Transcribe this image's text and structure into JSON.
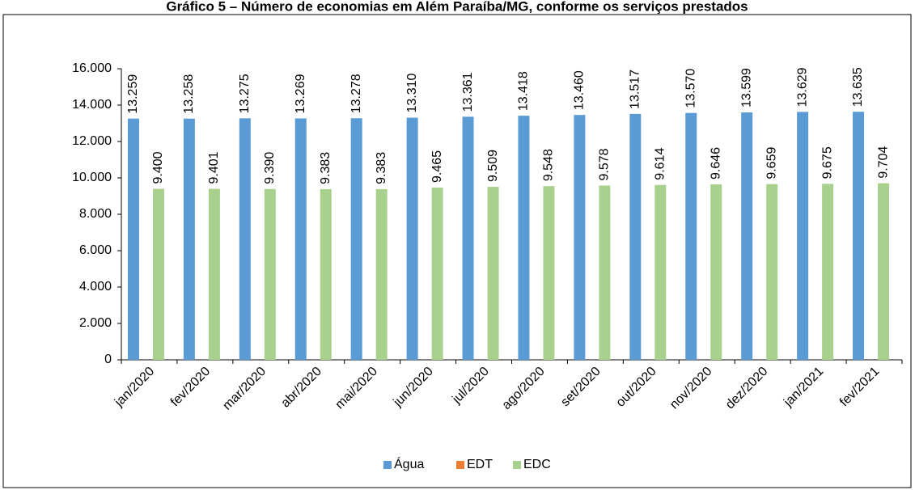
{
  "chart_data": {
    "type": "bar",
    "title": "Gráfico 5 – Número de economias em Além Paraíba/MG, conforme os serviços prestados",
    "categories": [
      "jan/2020",
      "fev/2020",
      "mar/2020",
      "abr/2020",
      "mai/2020",
      "jun/2020",
      "jul/2020",
      "ago/2020",
      "set/2020",
      "out/2020",
      "nov/2020",
      "dez/2020",
      "jan/2021",
      "fev/2021"
    ],
    "series": [
      {
        "name": "Água",
        "color": "#5b9bd5",
        "values": [
          13259,
          13258,
          13275,
          13269,
          13278,
          13310,
          13361,
          13418,
          13460,
          13517,
          13570,
          13599,
          13629,
          13635
        ],
        "value_labels": [
          "13.259",
          "13.258",
          "13.275",
          "13.269",
          "13.278",
          "13.310",
          "13.361",
          "13.418",
          "13.460",
          "13.517",
          "13.570",
          "13.599",
          "13.629",
          "13.635"
        ]
      },
      {
        "name": "EDT",
        "color": "#ed7d31",
        "values": [
          null,
          null,
          null,
          null,
          null,
          null,
          null,
          null,
          null,
          null,
          null,
          null,
          null,
          null
        ]
      },
      {
        "name": "EDC",
        "color": "#a9d18e",
        "values": [
          9400,
          9401,
          9390,
          9383,
          9383,
          9465,
          9509,
          9548,
          9578,
          9614,
          9646,
          9659,
          9675,
          9704
        ],
        "value_labels": [
          "9.400",
          "9.401",
          "9.390",
          "9.383",
          "9.383",
          "9.465",
          "9.509",
          "9.548",
          "9.578",
          "9.614",
          "9.646",
          "9.659",
          "9.675",
          "9.704"
        ]
      }
    ],
    "ylim": [
      0,
      16000
    ],
    "yticks": [
      0,
      {
        "value": 2000,
        "label": "2.000"
      },
      {
        "value": 4000,
        "label": "4.000"
      },
      {
        "value": 6000,
        "label": "6.000"
      },
      {
        "value": 8000,
        "label": "8.000"
      },
      {
        "value": 10000,
        "label": "10.000"
      },
      {
        "value": 12000,
        "label": "12.000"
      },
      {
        "value": 14000,
        "label": "14.000"
      },
      {
        "value": 16000,
        "label": "16.000"
      }
    ],
    "grid": false,
    "legend": "bottom"
  }
}
